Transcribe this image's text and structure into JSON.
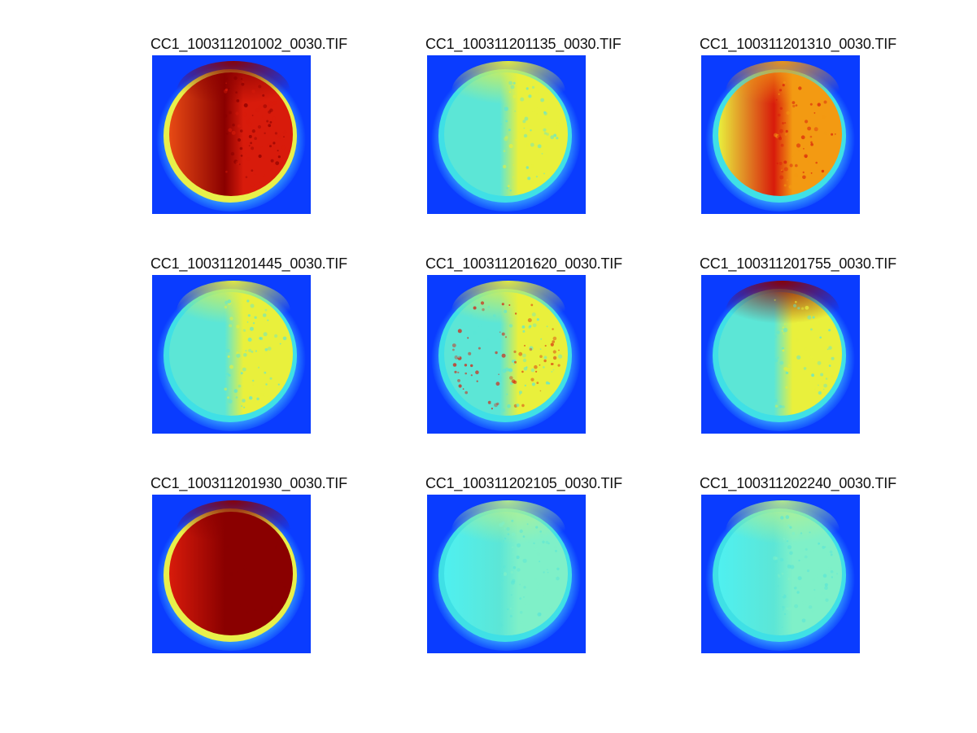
{
  "panels": [
    {
      "title": "CC1_100311201002_0030.TIF",
      "scheme": "hot-red"
    },
    {
      "title": "CC1_100311201135_0030.TIF",
      "scheme": "cool-yellow"
    },
    {
      "title": "CC1_100311201310_0030.TIF",
      "scheme": "warm-orange"
    },
    {
      "title": "CC1_100311201445_0030.TIF",
      "scheme": "cool-yellow"
    },
    {
      "title": "CC1_100311201620_0030.TIF",
      "scheme": "cool-yellow-speckle"
    },
    {
      "title": "CC1_100311201755_0030.TIF",
      "scheme": "cool-yellow-redcap"
    },
    {
      "title": "CC1_100311201930_0030.TIF",
      "scheme": "dark-red"
    },
    {
      "title": "CC1_100311202105_0030.TIF",
      "scheme": "cool-cyan"
    },
    {
      "title": "CC1_100311202240_0030.TIF",
      "scheme": "cool-cyan"
    }
  ],
  "colors": {
    "background": "#0a3cff",
    "halo": "#39a8ff",
    "rim_cyan": "#3fe0e6",
    "rim_yellow": "#e8f04a",
    "dark_red": "#8a0000",
    "red": "#d81b0b",
    "orange": "#f39a12",
    "yellow": "#e9f03c",
    "cyan": "#5ce6d6"
  }
}
